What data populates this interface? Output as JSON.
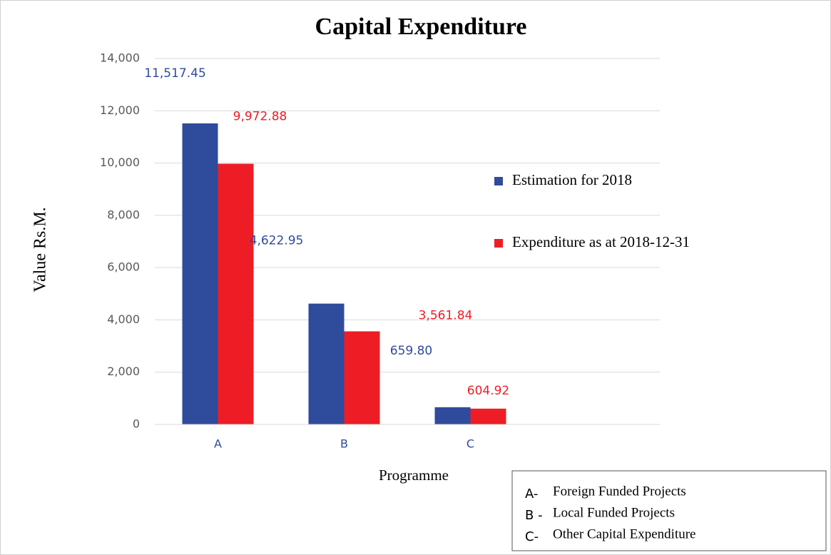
{
  "chart_data": {
    "type": "bar",
    "title": "Capital Expenditure",
    "x_label": "Programme",
    "y_label": "Value Rs.M.",
    "categories": [
      "A",
      "B",
      "C",
      null
    ],
    "series": [
      {
        "name": "Estimation for 2018",
        "color": "#2f4b9c",
        "values": [
          11517.45,
          4622.95,
          659.8,
          null
        ],
        "value_labels": [
          "11,517.45",
          "4,622.95",
          "659.80",
          null
        ]
      },
      {
        "name": "Expenditure as at 2018-12-31",
        "color": "#ee1d25",
        "values": [
          9972.88,
          3561.84,
          604.92,
          null
        ],
        "value_labels": [
          "9,972.88",
          "3,561.84",
          "604.92",
          null
        ]
      }
    ],
    "ylim": [
      0,
      14000
    ],
    "yticks": [
      0,
      {
        "value": 2000,
        "label": "2,000"
      },
      {
        "value": 4000,
        "label": "4,000"
      },
      {
        "value": 6000,
        "label": "6,000"
      },
      {
        "value": 8000,
        "label": "8,000"
      },
      {
        "value": 10000,
        "label": "10,000"
      },
      {
        "value": 12000,
        "label": "12,000"
      },
      {
        "value": 14000,
        "label": "14,000"
      }
    ],
    "grid": true,
    "legend_position": "right",
    "notes": [
      {
        "key": "A-",
        "text": "Foreign Funded Projects"
      },
      {
        "key": "B -",
        "text": "Local Funded Projects"
      },
      {
        "key": "C-",
        "text": "Other Capital Expenditure"
      }
    ]
  }
}
